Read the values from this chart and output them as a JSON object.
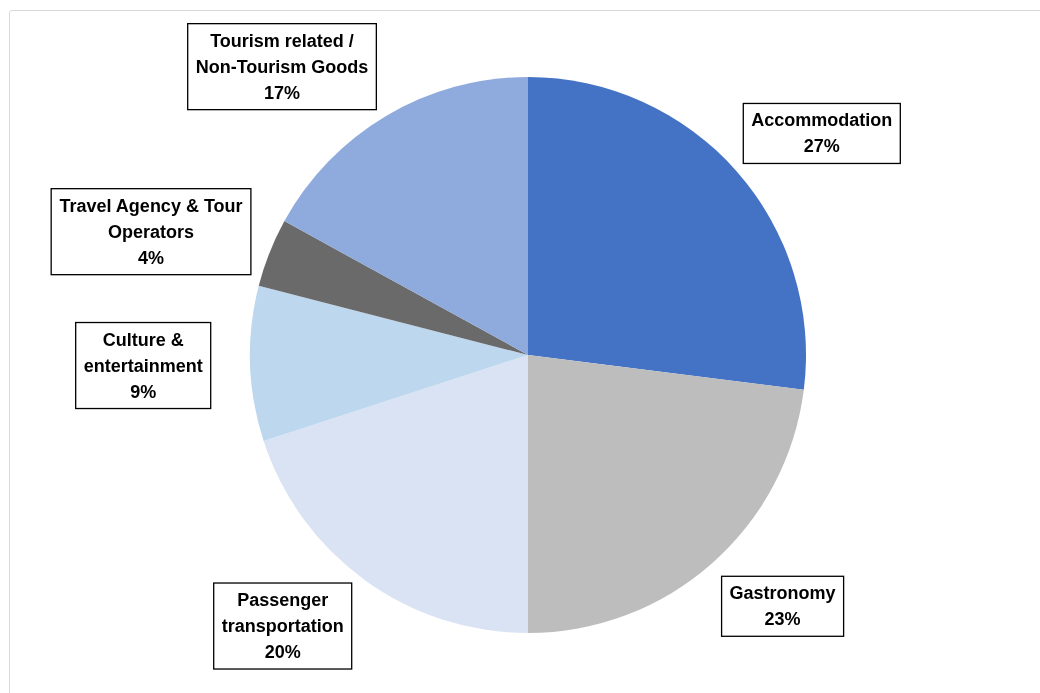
{
  "chart_data": {
    "type": "pie",
    "categories": [
      "Accommodation",
      "Gastronomy",
      "Passenger transportation",
      "Culture & entertainment",
      "Travel Agency & Tour Operators",
      "Tourism related / Non-Tourism Goods"
    ],
    "values": [
      27,
      23,
      20,
      9,
      4,
      17
    ],
    "colors": [
      "#4472c4",
      "#bdbdbd",
      "#dae3f3",
      "#bdd7ee",
      "#6a6a6a",
      "#8faadc"
    ],
    "value_labels": [
      "27%",
      "23%",
      "20%",
      "9%",
      "4%",
      "17%"
    ]
  }
}
